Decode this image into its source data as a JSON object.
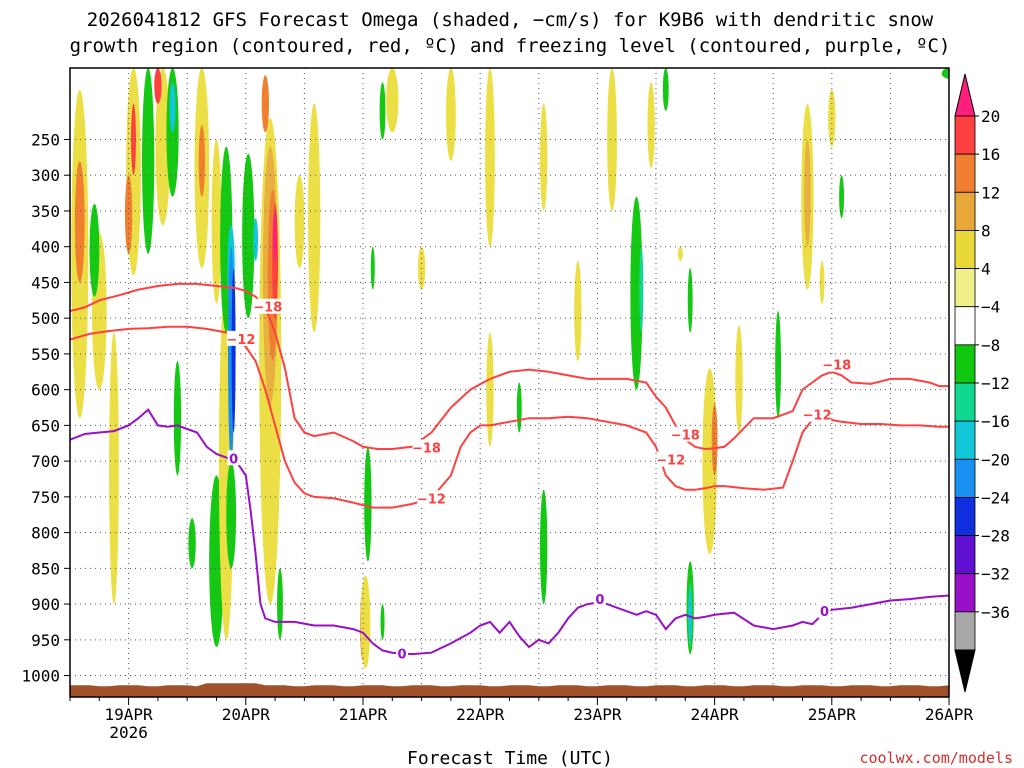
{
  "chart_data": {
    "type": "heatmap",
    "title_line1": "2026041812 GFS Forecast Omega (shaded, −cm/s) for K9B6 with dendritic snow",
    "title_line2": "growth region (contoured, red, ºC) and freezing level (contoured, purple, ºC)",
    "xlabel": "Forecast Time (UTC)",
    "credit": "coolwx.com/models",
    "xlim_hours": [
      0,
      180
    ],
    "ylim_hpa": [
      1030,
      150
    ],
    "y_ticks": [
      {
        "value": 250,
        "label": "250"
      },
      {
        "value": 300,
        "label": "300"
      },
      {
        "value": 350,
        "label": "350"
      },
      {
        "value": 400,
        "label": "400"
      },
      {
        "value": 450,
        "label": "450"
      },
      {
        "value": 500,
        "label": "500"
      },
      {
        "value": 550,
        "label": "550"
      },
      {
        "value": 600,
        "label": "600"
      },
      {
        "value": 650,
        "label": "650"
      },
      {
        "value": 700,
        "label": "700"
      },
      {
        "value": 750,
        "label": "750"
      },
      {
        "value": 800,
        "label": "800"
      },
      {
        "value": 850,
        "label": "850"
      },
      {
        "value": 900,
        "label": "900"
      },
      {
        "value": 950,
        "label": "950"
      },
      {
        "value": 1000,
        "label": "1000"
      }
    ],
    "x_ticks": [
      {
        "hour": 12,
        "label": "19APR",
        "sublabel": "2026"
      },
      {
        "hour": 36,
        "label": "20APR",
        "sublabel": ""
      },
      {
        "hour": 60,
        "label": "21APR",
        "sublabel": ""
      },
      {
        "hour": 84,
        "label": "22APR",
        "sublabel": ""
      },
      {
        "hour": 108,
        "label": "23APR",
        "sublabel": ""
      },
      {
        "hour": 132,
        "label": "24APR",
        "sublabel": ""
      },
      {
        "hour": 156,
        "label": "25APR",
        "sublabel": ""
      },
      {
        "hour": 180,
        "label": "26APR",
        "sublabel": ""
      }
    ],
    "colorbar": {
      "labels": [
        "20",
        "16",
        "12",
        "8",
        "4",
        "−4",
        "−8",
        "−12",
        "−16",
        "−20",
        "−24",
        "−28",
        "−32",
        "−36"
      ],
      "colors": [
        "#ff1f7d",
        "#ff4040",
        "#f08030",
        "#e8a838",
        "#e8d838",
        "#f0f088",
        "#ffffff",
        "#10c810",
        "#10d890",
        "#10c8d8",
        "#1890f0",
        "#1030e0",
        "#6010d0",
        "#9810c8",
        "#a8a8a8",
        "#000000"
      ]
    },
    "shading_colors": {
      "yellow": "#ecdf45",
      "light_orange": "#e8b040",
      "orange": "#f08030",
      "red": "#ff4040",
      "magenta": "#ff1f7d",
      "green": "#14c814",
      "teal": "#10d890",
      "cyan": "#10c8d8",
      "blue": "#1890f0",
      "dark_blue": "#1030e0"
    },
    "shaded_regions": [
      {
        "level": "yellow",
        "hour": 2,
        "p_top": 180,
        "p_bot": 640,
        "width_h": 3.5
      },
      {
        "level": "orange",
        "hour": 2,
        "p_top": 280,
        "p_bot": 450,
        "width_h": 2
      },
      {
        "level": "yellow",
        "hour": 6,
        "p_top": 380,
        "p_bot": 600,
        "width_h": 3
      },
      {
        "level": "green",
        "hour": 5,
        "p_top": 340,
        "p_bot": 470,
        "width_h": 2
      },
      {
        "level": "yellow",
        "hour": 9,
        "p_top": 520,
        "p_bot": 900,
        "width_h": 2
      },
      {
        "level": "yellow",
        "hour": 13,
        "p_top": 150,
        "p_bot": 440,
        "width_h": 3
      },
      {
        "level": "red",
        "hour": 13,
        "p_top": 200,
        "p_bot": 300,
        "width_h": 1
      },
      {
        "level": "orange",
        "hour": 12,
        "p_top": 300,
        "p_bot": 410,
        "width_h": 1.5
      },
      {
        "level": "green",
        "hour": 16,
        "p_top": 150,
        "p_bot": 410,
        "width_h": 2.5
      },
      {
        "level": "yellow",
        "hour": 19,
        "p_top": 150,
        "p_bot": 370,
        "width_h": 3
      },
      {
        "level": "red",
        "hour": 18,
        "p_top": 150,
        "p_bot": 200,
        "width_h": 1.5
      },
      {
        "level": "green",
        "hour": 21,
        "p_top": 150,
        "p_bot": 330,
        "width_h": 2.5
      },
      {
        "level": "cyan",
        "hour": 21,
        "p_top": 170,
        "p_bot": 240,
        "width_h": 1.2
      },
      {
        "level": "green",
        "hour": 22,
        "p_top": 560,
        "p_bot": 720,
        "width_h": 1.5
      },
      {
        "level": "green",
        "hour": 25,
        "p_top": 780,
        "p_bot": 850,
        "width_h": 1.5
      },
      {
        "level": "yellow",
        "hour": 27,
        "p_top": 150,
        "p_bot": 430,
        "width_h": 3
      },
      {
        "level": "orange",
        "hour": 27,
        "p_top": 230,
        "p_bot": 330,
        "width_h": 1.3
      },
      {
        "level": "green",
        "hour": 30,
        "p_top": 720,
        "p_bot": 960,
        "width_h": 3
      },
      {
        "level": "yellow",
        "hour": 30,
        "p_top": 250,
        "p_bot": 480,
        "width_h": 2
      },
      {
        "level": "yellow",
        "hour": 32,
        "p_top": 450,
        "p_bot": 950,
        "width_h": 3
      },
      {
        "level": "green",
        "hour": 32,
        "p_top": 260,
        "p_bot": 520,
        "width_h": 2.5
      },
      {
        "level": "cyan",
        "hour": 33,
        "p_top": 370,
        "p_bot": 500,
        "width_h": 1.5
      },
      {
        "level": "blue",
        "hour": 33,
        "p_top": 400,
        "p_bot": 700,
        "width_h": 1.3
      },
      {
        "level": "dark_blue",
        "hour": 33.5,
        "p_top": 430,
        "p_bot": 660,
        "width_h": 0.6
      },
      {
        "level": "green",
        "hour": 33,
        "p_top": 700,
        "p_bot": 850,
        "width_h": 2
      },
      {
        "level": "green",
        "hour": 36.5,
        "p_top": 270,
        "p_bot": 500,
        "width_h": 2.5
      },
      {
        "level": "cyan",
        "hour": 38,
        "p_top": 360,
        "p_bot": 420,
        "width_h": 1
      },
      {
        "level": "yellow",
        "hour": 41,
        "p_top": 220,
        "p_bot": 900,
        "width_h": 4.5
      },
      {
        "level": "light_orange",
        "hour": 41,
        "p_top": 260,
        "p_bot": 620,
        "width_h": 3
      },
      {
        "level": "orange",
        "hour": 41.5,
        "p_top": 320,
        "p_bot": 560,
        "width_h": 2
      },
      {
        "level": "red",
        "hour": 42,
        "p_top": 340,
        "p_bot": 500,
        "width_h": 1.2
      },
      {
        "level": "magenta",
        "hour": 42,
        "p_top": 350,
        "p_bot": 420,
        "width_h": 0.6
      },
      {
        "level": "orange",
        "hour": 40,
        "p_top": 160,
        "p_bot": 240,
        "width_h": 1.5
      },
      {
        "level": "green",
        "hour": 43,
        "p_top": 850,
        "p_bot": 950,
        "width_h": 1.2
      },
      {
        "level": "yellow",
        "hour": 50,
        "p_top": 200,
        "p_bot": 520,
        "width_h": 2.5
      },
      {
        "level": "yellow",
        "hour": 47,
        "p_top": 300,
        "p_bot": 430,
        "width_h": 2
      },
      {
        "level": "green",
        "hour": 61,
        "p_top": 680,
        "p_bot": 840,
        "width_h": 1.5
      },
      {
        "level": "orange",
        "hour": 60,
        "p_top": 880,
        "p_bot": 980,
        "width_h": 1.2
      },
      {
        "level": "yellow",
        "hour": 60.5,
        "p_top": 860,
        "p_bot": 990,
        "width_h": 2
      },
      {
        "level": "green",
        "hour": 64,
        "p_top": 900,
        "p_bot": 950,
        "width_h": 0.8
      },
      {
        "level": "green",
        "hour": 64,
        "p_top": 170,
        "p_bot": 250,
        "width_h": 1.2
      },
      {
        "level": "green",
        "hour": 62,
        "p_top": 400,
        "p_bot": 460,
        "width_h": 0.8
      },
      {
        "level": "yellow",
        "hour": 66,
        "p_top": 150,
        "p_bot": 240,
        "width_h": 2.5
      },
      {
        "level": "yellow",
        "hour": 72,
        "p_top": 400,
        "p_bot": 460,
        "width_h": 1.5
      },
      {
        "level": "yellow",
        "hour": 78,
        "p_top": 150,
        "p_bot": 280,
        "width_h": 2
      },
      {
        "level": "yellow",
        "hour": 86,
        "p_top": 150,
        "p_bot": 400,
        "width_h": 2
      },
      {
        "level": "yellow",
        "hour": 86,
        "p_top": 520,
        "p_bot": 680,
        "width_h": 1.5
      },
      {
        "level": "green",
        "hour": 92,
        "p_top": 590,
        "p_bot": 660,
        "width_h": 1
      },
      {
        "level": "yellow",
        "hour": 97,
        "p_top": 200,
        "p_bot": 350,
        "width_h": 1.5
      },
      {
        "level": "green",
        "hour": 97,
        "p_top": 740,
        "p_bot": 900,
        "width_h": 1.5
      },
      {
        "level": "yellow",
        "hour": 104,
        "p_top": 420,
        "p_bot": 560,
        "width_h": 1.5
      },
      {
        "level": "yellow",
        "hour": 111,
        "p_top": 150,
        "p_bot": 350,
        "width_h": 2
      },
      {
        "level": "green",
        "hour": 116,
        "p_top": 330,
        "p_bot": 600,
        "width_h": 2.5
      },
      {
        "level": "teal",
        "hour": 117,
        "p_top": 400,
        "p_bot": 520,
        "width_h": 0.8
      },
      {
        "level": "yellow",
        "hour": 119,
        "p_top": 170,
        "p_bot": 290,
        "width_h": 1.5
      },
      {
        "level": "green",
        "hour": 122,
        "p_top": 150,
        "p_bot": 210,
        "width_h": 1.2
      },
      {
        "level": "yellow",
        "hour": 125,
        "p_top": 400,
        "p_bot": 420,
        "width_h": 1
      },
      {
        "level": "green",
        "hour": 127,
        "p_top": 430,
        "p_bot": 520,
        "width_h": 1
      },
      {
        "level": "yellow",
        "hour": 131,
        "p_top": 570,
        "p_bot": 830,
        "width_h": 3
      },
      {
        "level": "orange",
        "hour": 132,
        "p_top": 620,
        "p_bot": 720,
        "width_h": 1.2
      },
      {
        "level": "green",
        "hour": 127,
        "p_top": 840,
        "p_bot": 970,
        "width_h": 1.5
      },
      {
        "level": "teal",
        "hour": 127,
        "p_top": 870,
        "p_bot": 960,
        "width_h": 0.8
      },
      {
        "level": "cyan",
        "hour": 127,
        "p_top": 880,
        "p_bot": 950,
        "width_h": 0.5
      },
      {
        "level": "yellow",
        "hour": 137,
        "p_top": 510,
        "p_bot": 660,
        "width_h": 1.5
      },
      {
        "level": "green",
        "hour": 145,
        "p_top": 490,
        "p_bot": 640,
        "width_h": 1.2
      },
      {
        "level": "yellow",
        "hour": 151,
        "p_top": 200,
        "p_bot": 460,
        "width_h": 2.5
      },
      {
        "level": "light_orange",
        "hour": 151,
        "p_top": 250,
        "p_bot": 400,
        "width_h": 1.3
      },
      {
        "level": "yellow",
        "hour": 156,
        "p_top": 180,
        "p_bot": 260,
        "width_h": 1.5
      },
      {
        "level": "green",
        "hour": 158,
        "p_top": 300,
        "p_bot": 360,
        "width_h": 1
      },
      {
        "level": "yellow",
        "hour": 154,
        "p_top": 420,
        "p_bot": 480,
        "width_h": 1
      },
      {
        "level": "green",
        "hour": 180,
        "p_top": 150,
        "p_bot": 165,
        "width_h": 3
      }
    ],
    "series": [
      {
        "name": "-18",
        "color": "#ff4040",
        "label_text": "−18",
        "hours": [
          0,
          3,
          6,
          10,
          14,
          18,
          22,
          26,
          30,
          34,
          36,
          38,
          40,
          42,
          44,
          46,
          48,
          50,
          54,
          58,
          60,
          63,
          66,
          70,
          74,
          78,
          82,
          86,
          90,
          94,
          98,
          102,
          106,
          110,
          114,
          118,
          120,
          122,
          124,
          126,
          128,
          130,
          132,
          134,
          136,
          140,
          144,
          148,
          150,
          152,
          154,
          156,
          158,
          160,
          164,
          168,
          172,
          176,
          178,
          180
        ],
        "p_hpa": [
          490,
          485,
          475,
          468,
          460,
          455,
          452,
          452,
          455,
          458,
          462,
          470,
          485,
          520,
          570,
          640,
          660,
          665,
          660,
          672,
          680,
          683,
          683,
          680,
          660,
          625,
          600,
          585,
          575,
          572,
          575,
          580,
          585,
          585,
          585,
          590,
          610,
          625,
          650,
          670,
          680,
          683,
          682,
          680,
          668,
          640,
          640,
          630,
          600,
          590,
          580,
          575,
          580,
          590,
          592,
          585,
          585,
          590,
          595,
          595
        ],
        "labels": [
          {
            "hour": 40.5,
            "p_hpa": 484,
            "text": "−18"
          },
          {
            "hour": 73,
            "p_hpa": 681,
            "text": "−18"
          },
          {
            "hour": 126,
            "p_hpa": 663,
            "text": "−18"
          },
          {
            "hour": 157,
            "p_hpa": 565,
            "text": "−18"
          }
        ]
      },
      {
        "name": "-12",
        "color": "#ff4040",
        "label_text": "−12",
        "hours": [
          0,
          4,
          8,
          12,
          16,
          20,
          24,
          28,
          32,
          34,
          36,
          38,
          40,
          42,
          44,
          46,
          48,
          50,
          54,
          58,
          62,
          66,
          70,
          74,
          78,
          80,
          82,
          84,
          86,
          90,
          94,
          98,
          102,
          106,
          110,
          114,
          118,
          120,
          122,
          124,
          126,
          128,
          130,
          132,
          134,
          138,
          142,
          146,
          148,
          150,
          152,
          154,
          158,
          162,
          166,
          170,
          174,
          178,
          180
        ],
        "p_hpa": [
          530,
          522,
          518,
          515,
          514,
          512,
          512,
          515,
          520,
          528,
          540,
          560,
          600,
          650,
          700,
          730,
          745,
          750,
          752,
          758,
          765,
          765,
          760,
          752,
          720,
          680,
          660,
          650,
          650,
          645,
          640,
          640,
          638,
          640,
          645,
          650,
          660,
          680,
          720,
          735,
          740,
          740,
          738,
          735,
          735,
          738,
          740,
          737,
          700,
          660,
          642,
          640,
          645,
          648,
          648,
          650,
          650,
          652,
          652
        ],
        "labels": [
          {
            "hour": 35,
            "p_hpa": 529,
            "text": "−12"
          },
          {
            "hour": 74,
            "p_hpa": 752,
            "text": "−12"
          },
          {
            "hour": 123,
            "p_hpa": 698,
            "text": "−12"
          },
          {
            "hour": 153,
            "p_hpa": 635,
            "text": "−12"
          }
        ]
      },
      {
        "name": "0",
        "color": "#9810c8",
        "label_text": "0",
        "hours": [
          0,
          3,
          6,
          9,
          12,
          14,
          16,
          18,
          20,
          22,
          24,
          26,
          28,
          30,
          32,
          34,
          36,
          37,
          38,
          39,
          40,
          42,
          46,
          50,
          54,
          58,
          60,
          62,
          64,
          66,
          70,
          74,
          78,
          82,
          84,
          86,
          88,
          90,
          92,
          94,
          96,
          98,
          100,
          102,
          104,
          106,
          108,
          110,
          112,
          114,
          116,
          118,
          120,
          122,
          124,
          126,
          128,
          130,
          132,
          136,
          140,
          144,
          148,
          150,
          152,
          154,
          156,
          160,
          164,
          168,
          172,
          176,
          180
        ],
        "p_hpa": [
          670,
          662,
          660,
          658,
          650,
          640,
          628,
          650,
          652,
          650,
          655,
          660,
          680,
          690,
          695,
          700,
          720,
          770,
          830,
          900,
          920,
          925,
          925,
          930,
          930,
          935,
          940,
          955,
          965,
          968,
          970,
          968,
          955,
          940,
          930,
          925,
          940,
          925,
          945,
          960,
          950,
          955,
          940,
          920,
          905,
          900,
          898,
          900,
          905,
          910,
          915,
          910,
          915,
          935,
          920,
          915,
          920,
          918,
          915,
          912,
          930,
          935,
          930,
          925,
          928,
          915,
          908,
          905,
          900,
          895,
          893,
          890,
          888
        ],
        "labels": [
          {
            "hour": 33.5,
            "p_hpa": 696,
            "text": "0"
          },
          {
            "hour": 68,
            "p_hpa": 969,
            "text": "0"
          },
          {
            "hour": 108.5,
            "p_hpa": 893,
            "text": "0"
          },
          {
            "hour": 154.5,
            "p_hpa": 910,
            "text": "0"
          }
        ]
      }
    ],
    "terrain": {
      "color": "#a0522d",
      "surface_p_hpa": 1015,
      "bottom_p_hpa": 1030
    }
  }
}
